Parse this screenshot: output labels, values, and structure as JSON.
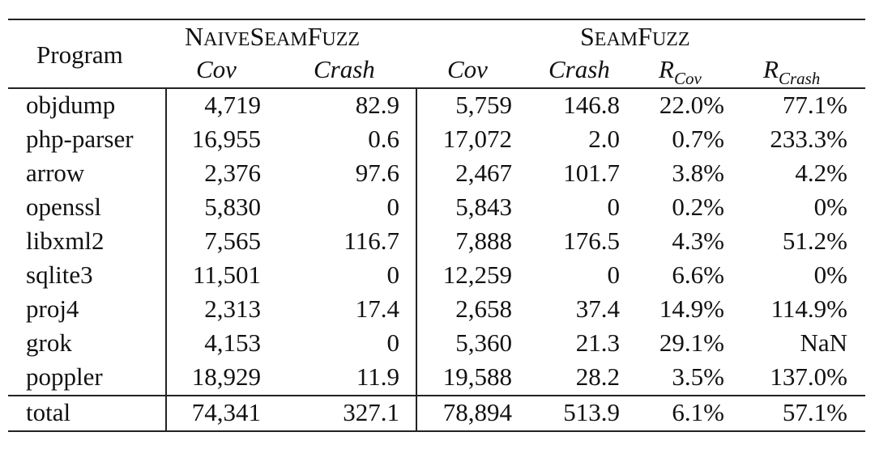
{
  "table": {
    "program_header": "Program",
    "group1": {
      "big1": "N",
      "small1": "AIVE",
      "big2": "S",
      "small2": "EAM",
      "big3": "F",
      "small3": "UZZ"
    },
    "group2": {
      "big1": "S",
      "small1": "EAM",
      "big2": "F",
      "small2": "UZZ"
    },
    "subheaders": {
      "cov1": "Cov",
      "crash1": "Crash",
      "cov2": "Cov",
      "crash2": "Crash",
      "rcov_main": "R",
      "rcov_sub": "Cov",
      "rcrash_main": "R",
      "rcrash_sub": "Crash"
    },
    "rows": [
      [
        "objdump",
        "4,719",
        "82.9",
        "5,759",
        "146.8",
        "22.0%",
        "77.1%"
      ],
      [
        "php-parser",
        "16,955",
        "0.6",
        "17,072",
        "2.0",
        "0.7%",
        "233.3%"
      ],
      [
        "arrow",
        "2,376",
        "97.6",
        "2,467",
        "101.7",
        "3.8%",
        "4.2%"
      ],
      [
        "openssl",
        "5,830",
        "0",
        "5,843",
        "0",
        "0.2%",
        "0%"
      ],
      [
        "libxml2",
        "7,565",
        "116.7",
        "7,888",
        "176.5",
        "4.3%",
        "51.2%"
      ],
      [
        "sqlite3",
        "11,501",
        "0",
        "12,259",
        "0",
        "6.6%",
        "0%"
      ],
      [
        "proj4",
        "2,313",
        "17.4",
        "2,658",
        "37.4",
        "14.9%",
        "114.9%"
      ],
      [
        "grok",
        "4,153",
        "0",
        "5,360",
        "21.3",
        "29.1%",
        "NaN"
      ],
      [
        "poppler",
        "18,929",
        "11.9",
        "19,588",
        "28.2",
        "3.5%",
        "137.0%"
      ]
    ],
    "total": [
      "total",
      "74,341",
      "327.1",
      "78,894",
      "513.9",
      "6.1%",
      "57.1%"
    ]
  }
}
